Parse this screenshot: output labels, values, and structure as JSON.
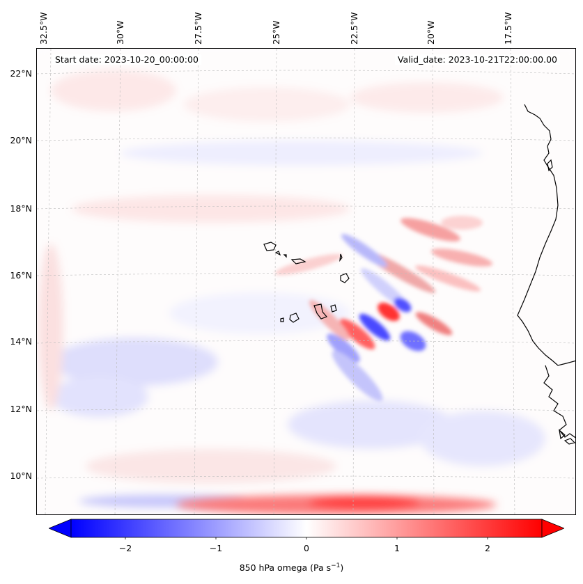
{
  "map": {
    "start_date": "Start date: 2023-10-20_00:00:00",
    "valid_date": "Valid_date: 2023-10-21T22:00:00.00",
    "longitude_labels": [
      "32.5°W",
      "30°W",
      "27.5°W",
      "25°W",
      "22.5°W",
      "20°W",
      "17.5°W"
    ],
    "latitude_labels": [
      "22°N",
      "20°N",
      "18°N",
      "16°N",
      "14°N",
      "12°N",
      "10°N"
    ],
    "colormap": {
      "negative": "#0000ff",
      "neutral": "#ffffff",
      "positive": "#ff0000"
    }
  },
  "colorbar": {
    "label": "850 hPa omega (Pa s",
    "label_superscript": "−1",
    "label_suffix": ")",
    "ticks": [
      "−2",
      "−1",
      "0",
      "1",
      "2"
    ],
    "range": [
      -2.6,
      2.6
    ]
  }
}
